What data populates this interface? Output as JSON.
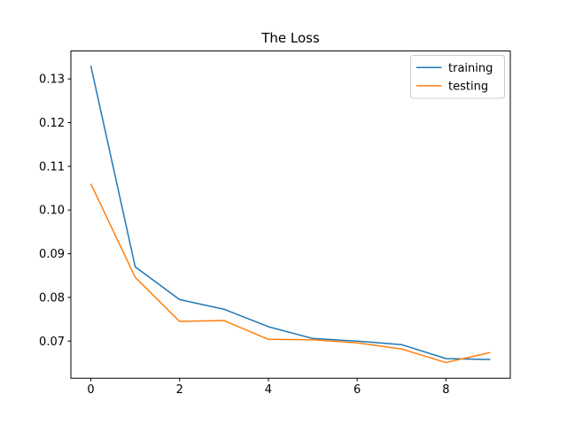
{
  "figure": {
    "background": "#ffffff"
  },
  "chart_data": {
    "type": "line",
    "title": "The Loss",
    "xlabel": "",
    "ylabel": "",
    "grid": false,
    "x": [
      0,
      1,
      2,
      3,
      4,
      5,
      6,
      7,
      8,
      9
    ],
    "series": [
      {
        "name": "training",
        "color": "#1f77b4",
        "values": [
          0.133,
          0.087,
          0.0795,
          0.0773,
          0.0733,
          0.0706,
          0.07,
          0.0692,
          0.066,
          0.0658
        ]
      },
      {
        "name": "testing",
        "color": "#ff7f0e",
        "values": [
          0.106,
          0.0846,
          0.0745,
          0.0747,
          0.0704,
          0.0703,
          0.0696,
          0.0682,
          0.0651,
          0.0674
        ]
      }
    ],
    "xlim": [
      -0.45,
      9.45
    ],
    "ylim": [
      0.0615,
      0.1364
    ],
    "xticks": [
      0,
      2,
      4,
      6,
      8
    ],
    "xtick_labels": [
      "0",
      "2",
      "4",
      "6",
      "8"
    ],
    "yticks": [
      0.07,
      0.08,
      0.09,
      0.1,
      0.11,
      0.12,
      0.13
    ],
    "ytick_labels": [
      "0.07",
      "0.08",
      "0.09",
      "0.10",
      "0.11",
      "0.12",
      "0.13"
    ],
    "line_width": 1.5,
    "axis_color": "#000000",
    "legend": {
      "location": "upper right",
      "entries": [
        "training",
        "testing"
      ],
      "border_color": "#cccccc",
      "background": "#ffffff"
    }
  }
}
